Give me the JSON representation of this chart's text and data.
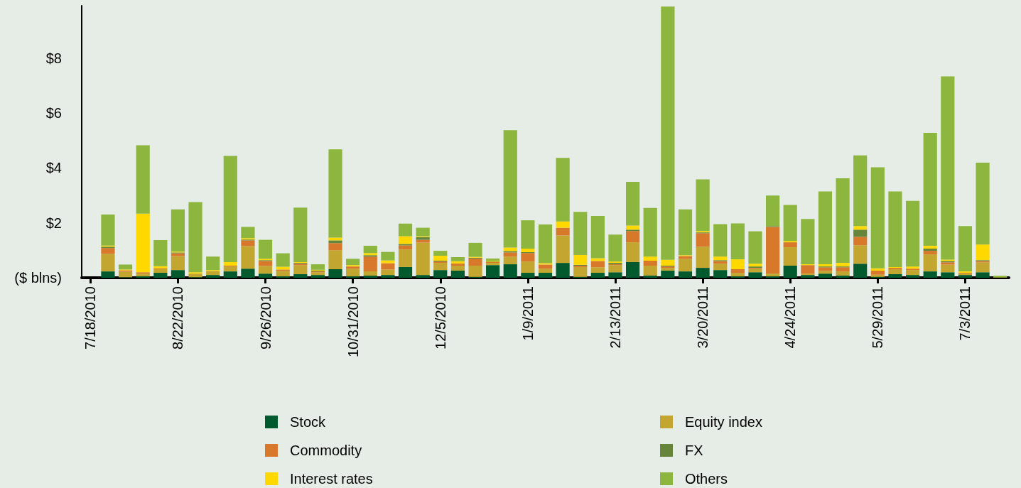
{
  "chart_data": {
    "type": "bar",
    "stacked": true,
    "legend": "bottom",
    "grid": false,
    "categories": [
      "7/18/2010",
      null,
      null,
      null,
      null,
      "8/22/2010",
      null,
      null,
      null,
      null,
      "9/26/2010",
      null,
      null,
      null,
      null,
      "10/31/2010",
      null,
      null,
      null,
      null,
      "12/5/2010",
      null,
      null,
      null,
      null,
      "1/9/2011",
      null,
      null,
      null,
      null,
      "2/13/2011",
      null,
      null,
      null,
      null,
      "3/20/2011",
      null,
      null,
      null,
      null,
      "4/24/2011",
      null,
      null,
      null,
      null,
      "5/29/2011",
      null,
      null,
      null,
      null,
      "7/3/2011",
      null,
      null
    ],
    "ylim": [
      0,
      9.9
    ],
    "yticks": [
      {
        "value": 0,
        "label": "($ blns)"
      },
      {
        "value": 2,
        "label": "$2"
      },
      {
        "value": 4,
        "label": "$4"
      },
      {
        "value": 6,
        "label": "$6"
      },
      {
        "value": 8,
        "label": "$8"
      }
    ],
    "series": [
      {
        "name": "Stock",
        "color": "#005a2d",
        "values": [
          null,
          0.23,
          0.02,
          0.05,
          0.18,
          0.28,
          0.02,
          0.1,
          0.23,
          0.33,
          0.15,
          0.05,
          0.13,
          0.1,
          0.31,
          0.05,
          0.08,
          0.1,
          0.39,
          0.1,
          0.28,
          0.26,
          0.03,
          0.46,
          0.49,
          0.18,
          0.18,
          0.54,
          0.03,
          0.18,
          0.2,
          0.57,
          0.08,
          0.26,
          0.23,
          0.36,
          0.28,
          0.05,
          0.2,
          0.05,
          0.44,
          0.1,
          0.15,
          0.08,
          0.51,
          0.03,
          0.13,
          0.1,
          0.23,
          0.2,
          0.1,
          0.2,
          0
        ]
      },
      {
        "name": "Equity index",
        "color": "#c2a62f",
        "values": [
          null,
          0.64,
          0.2,
          0.1,
          0.13,
          0.51,
          0.13,
          0.15,
          0.18,
          0.82,
          0.28,
          0.2,
          0.33,
          0.1,
          0.69,
          0.28,
          0.15,
          0.2,
          0.64,
          1.18,
          0.26,
          0.18,
          0.41,
          0.08,
          0.28,
          0.41,
          0.15,
          1.0,
          0.36,
          0.2,
          0.26,
          0.72,
          0.36,
          0.1,
          0.46,
          0.77,
          0.23,
          0.13,
          0.13,
          0.1,
          0.67,
          0.05,
          0.1,
          0.15,
          0.67,
          0.08,
          0.18,
          0.18,
          0.62,
          0.28,
          0.05,
          0.36,
          0.02
        ]
      },
      {
        "name": "Commodity",
        "color": "#d7782a",
        "values": [
          null,
          0.21,
          0.05,
          0.05,
          0.03,
          0.1,
          0,
          0,
          0.03,
          0.21,
          0.18,
          0.05,
          0.05,
          0.03,
          0.26,
          0.08,
          0.54,
          0.23,
          0.15,
          0.1,
          0.05,
          0.08,
          0.26,
          0.03,
          0.15,
          0.31,
          0.15,
          0.28,
          0.05,
          0.23,
          0.03,
          0.41,
          0.18,
          0.05,
          0.1,
          0.49,
          0.1,
          0.13,
          0.03,
          1.7,
          0.18,
          0.31,
          0.13,
          0.15,
          0.31,
          0.15,
          0.05,
          0.05,
          0.13,
          0.08,
          0.03,
          0.05,
          0
        ]
      },
      {
        "name": "FX",
        "color": "#66843a",
        "values": [
          null,
          0.05,
          0,
          0,
          0,
          0.03,
          0,
          0,
          0,
          0.03,
          0.03,
          0,
          0.03,
          0.03,
          0.1,
          0,
          0.05,
          0,
          0.05,
          0.1,
          0.03,
          0,
          0.03,
          0.02,
          0.05,
          0.03,
          0,
          0,
          0.03,
          0,
          0.05,
          0.05,
          0,
          0.03,
          0,
          0.03,
          0.03,
          0,
          0.05,
          0.03,
          0,
          0,
          0.03,
          0.03,
          0.26,
          0,
          0,
          0,
          0.08,
          0.05,
          0,
          0.03,
          0
        ]
      },
      {
        "name": "Interest rates",
        "color": "#ffd800",
        "values": [
          null,
          0.04,
          0.03,
          2.13,
          0.08,
          0.03,
          0.05,
          0.03,
          0.13,
          0.05,
          0.05,
          0.1,
          0.03,
          0.03,
          0.1,
          0.05,
          0.08,
          0.1,
          0.28,
          0.03,
          0.18,
          0.08,
          0.03,
          0.03,
          0.13,
          0.13,
          0.05,
          0.23,
          0.36,
          0.1,
          0.05,
          0.15,
          0.15,
          0.21,
          0.03,
          0.05,
          0.13,
          0.36,
          0.1,
          0,
          0.05,
          0.03,
          0.08,
          0.13,
          0.13,
          0.08,
          0.03,
          0.08,
          0.1,
          0.05,
          0.05,
          0.57,
          0
        ]
      },
      {
        "name": "Others",
        "color": "#8db63f",
        "values": [
          null,
          1.13,
          0.18,
          2.49,
          0.95,
          1.54,
          2.55,
          0.49,
          3.86,
          0.41,
          0.69,
          0.49,
          1.98,
          0.2,
          3.21,
          0.23,
          0.26,
          0.31,
          0.46,
          0.31,
          0.18,
          0.15,
          0.51,
          0.08,
          4.27,
          1.03,
          1.41,
          2.31,
          1.57,
          1.54,
          0.98,
          1.59,
          1.77,
          9.22,
          1.67,
          1.88,
          1.18,
          1.31,
          1.18,
          1.11,
          1.31,
          1.65,
          2.65,
          3.08,
          2.57,
          3.68,
          2.75,
          2.39,
          4.11,
          6.67,
          1.65,
          2.98,
          0.05
        ]
      }
    ]
  }
}
